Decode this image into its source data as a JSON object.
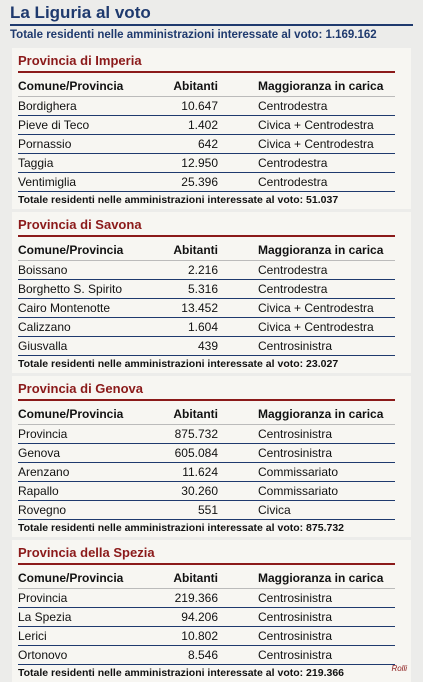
{
  "header": {
    "title": "La Liguria al voto",
    "subtitle": "Totale residenti nelle amministrazioni interessate al voto: 1.169.162"
  },
  "sections": [
    {
      "title": "Provincia di Imperia",
      "columns": [
        "Comune/Provincia",
        "Abitanti",
        "Maggioranza in carica"
      ],
      "rows": [
        [
          "Bordighera",
          "10.647",
          "Centrodestra"
        ],
        [
          "Pieve di Teco",
          "1.402",
          "Civica + Centrodestra"
        ],
        [
          "Pornassio",
          "642",
          "Civica + Centrodestra"
        ],
        [
          "Taggia",
          "12.950",
          "Centrodestra"
        ],
        [
          "Ventimiglia",
          "25.396",
          "Centrodestra"
        ]
      ],
      "total": "Totale residenti nelle amministrazioni interessate al voto: 51.037"
    },
    {
      "title": "Provincia di Savona",
      "columns": [
        "Comune/Provincia",
        "Abitanti",
        "Maggioranza in carica"
      ],
      "rows": [
        [
          "Boissano",
          "2.216",
          "Centrodestra"
        ],
        [
          "Borghetto S. Spirito",
          "5.316",
          "Centrodestra"
        ],
        [
          "Cairo Montenotte",
          "13.452",
          "Civica + Centrodestra"
        ],
        [
          "Calizzano",
          "1.604",
          "Civica + Centrodestra"
        ],
        [
          "Giusvalla",
          "439",
          "Centrosinistra"
        ]
      ],
      "total": "Totale residenti nelle amministrazioni interessate al voto: 23.027"
    },
    {
      "title": "Provincia di Genova",
      "columns": [
        "Comune/Provincia",
        "Abitanti",
        "Maggioranza in carica"
      ],
      "rows": [
        [
          "Provincia",
          "875.732",
          "Centrosinistra"
        ],
        [
          "Genova",
          "605.084",
          "Centrosinistra"
        ],
        [
          "Arenzano",
          "11.624",
          "Commissariato"
        ],
        [
          "Rapallo",
          "30.260",
          "Commissariato"
        ],
        [
          "Rovegno",
          "551",
          "Civica"
        ]
      ],
      "total": "Totale residenti nelle amministrazioni interessate al voto: 875.732"
    },
    {
      "title": "Provincia della Spezia",
      "columns": [
        "Comune/Provincia",
        "Abitanti",
        "Maggioranza in carica"
      ],
      "rows": [
        [
          "Provincia",
          "219.366",
          "Centrosinistra"
        ],
        [
          "La Spezia",
          "94.206",
          "Centrosinistra"
        ],
        [
          "Lerici",
          "10.802",
          "Centrosinistra"
        ],
        [
          "Ortonovo",
          "8.546",
          "Centrosinistra"
        ]
      ],
      "total": "Totale residenti nelle amministrazioni interessate al voto: 219.366"
    }
  ],
  "credit": "Rolli"
}
